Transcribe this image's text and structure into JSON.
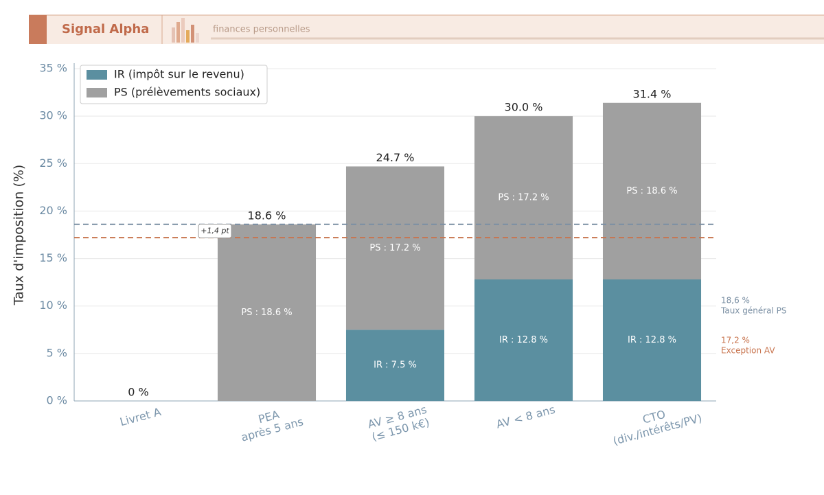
{
  "header": {
    "brand": "Signal Alpha",
    "tagline": "finances personnelles"
  },
  "chart_data": {
    "type": "stacked_bar",
    "ylabel": "Taux d'imposition (%)",
    "categories": [
      "Livret A",
      "PEA\naprès 5 ans",
      "AV ≥ 8 ans\n(≤ 150 k€)",
      "AV < 8 ans",
      "CTO\n(div./intérêts/PV)"
    ],
    "series": [
      {
        "name": "IR (impôt sur le revenu)",
        "color": "#5b8fa0",
        "values": [
          0,
          0,
          7.5,
          12.8,
          12.8
        ],
        "value_labels": [
          null,
          null,
          "IR : 7.5 %",
          "IR : 12.8 %",
          "IR : 12.8 %"
        ]
      },
      {
        "name": "PS (prélèvements sociaux)",
        "color": "#a0a0a0",
        "values": [
          0,
          18.6,
          17.2,
          17.2,
          18.6
        ],
        "value_labels": [
          null,
          "PS : 18.6 %",
          "PS : 17.2 %",
          "PS : 17.2 %",
          "PS : 18.6 %"
        ]
      }
    ],
    "totals": {
      "values": [
        0,
        18.6,
        24.7,
        30.0,
        31.4
      ],
      "value_labels": [
        "0 %",
        "18.6 %",
        "24.7 %",
        "30.0 %",
        "31.4 %"
      ]
    },
    "reference_lines": [
      {
        "value": 18.6,
        "color": "#7a8fa3",
        "label": "18,6 %",
        "sublabel": "Taux général PS"
      },
      {
        "value": 17.2,
        "color": "#c8744e",
        "label": "17,2 %",
        "sublabel": "Exception AV"
      }
    ],
    "annotation": "+1,4 pt",
    "ylim": [
      0,
      35
    ],
    "yticks": [
      {
        "value": 0,
        "label": "0 %"
      },
      {
        "value": 5,
        "label": "5 %"
      },
      {
        "value": 10,
        "label": "10 %"
      },
      {
        "value": 15,
        "label": "15 %"
      },
      {
        "value": 20,
        "label": "20 %"
      },
      {
        "value": 25,
        "label": "25 %"
      },
      {
        "value": 30,
        "label": "30 %"
      },
      {
        "value": 35,
        "label": "35 %"
      }
    ],
    "grid": true,
    "legend": "upper left"
  }
}
